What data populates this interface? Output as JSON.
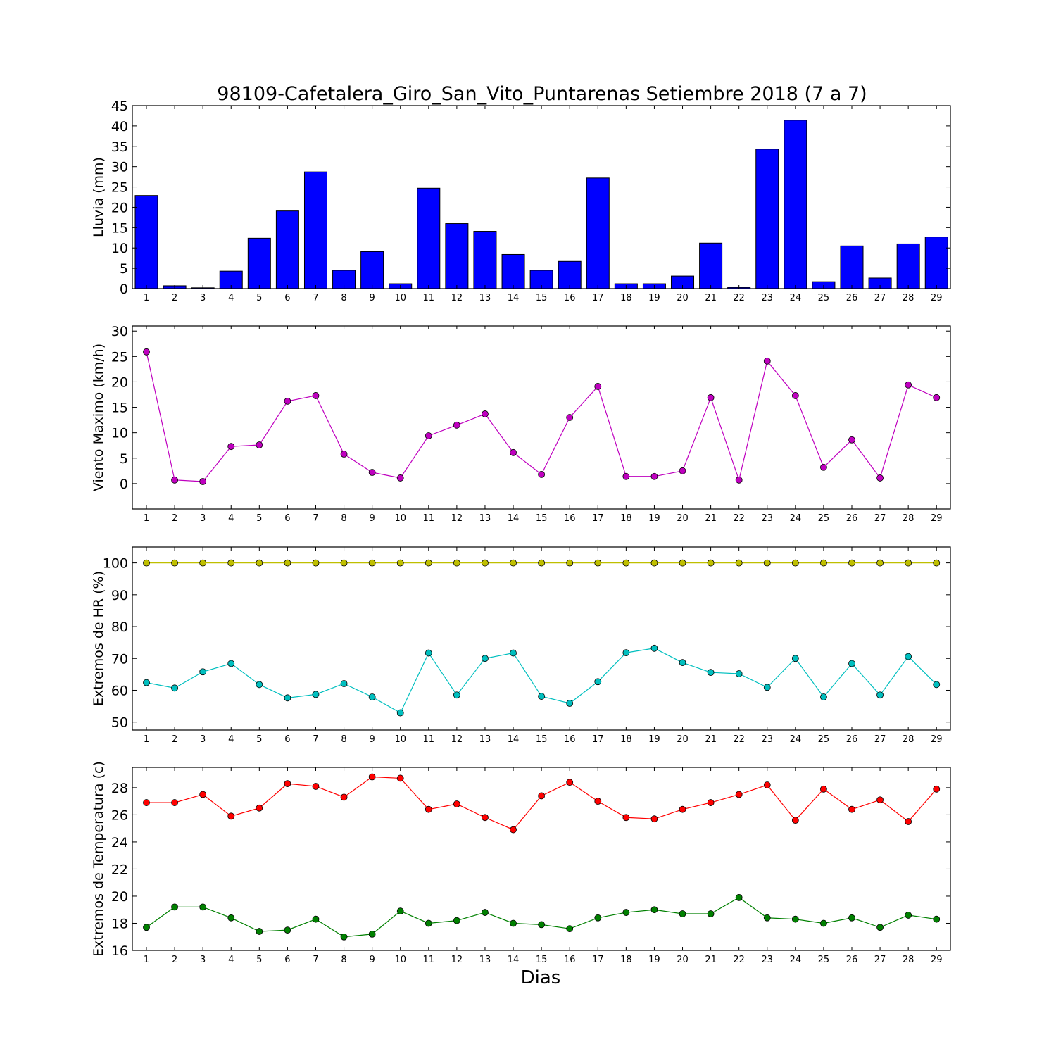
{
  "title": "98109-Cafetalera_Giro_San_Vito_Puntarenas Setiembre 2018  (7 a 7)",
  "xlabel": "Dias",
  "chart_data": [
    {
      "type": "bar",
      "ylabel": "Lluvia (mm)",
      "categories": [
        "1",
        "2",
        "3",
        "4",
        "5",
        "6",
        "7",
        "8",
        "9",
        "10",
        "11",
        "12",
        "13",
        "14",
        "15",
        "16",
        "17",
        "18",
        "19",
        "20",
        "21",
        "22",
        "23",
        "24",
        "25",
        "26",
        "27",
        "28",
        "29"
      ],
      "ylim": [
        0,
        45
      ],
      "yticks": [
        0,
        5,
        10,
        15,
        20,
        25,
        30,
        35,
        40,
        45
      ],
      "grid": false,
      "series": [
        {
          "color": "#0000ff",
          "values": [
            22.9,
            0.7,
            0.2,
            4.3,
            12.4,
            19.1,
            28.7,
            4.5,
            9.1,
            1.2,
            24.7,
            16.0,
            14.1,
            8.4,
            4.5,
            6.7,
            27.2,
            1.2,
            1.2,
            3.1,
            11.2,
            0.3,
            34.3,
            41.4,
            1.7,
            10.5,
            2.6,
            11.0,
            12.7
          ]
        }
      ]
    },
    {
      "type": "line",
      "ylabel": "Viento Maximo (km/h)",
      "categories": [
        "1",
        "2",
        "3",
        "4",
        "5",
        "6",
        "7",
        "8",
        "9",
        "10",
        "11",
        "12",
        "13",
        "14",
        "15",
        "16",
        "17",
        "18",
        "19",
        "20",
        "21",
        "22",
        "23",
        "24",
        "25",
        "26",
        "27",
        "28",
        "29"
      ],
      "ylim": [
        -5,
        31
      ],
      "yticks": [
        0,
        5,
        10,
        15,
        20,
        25,
        30
      ],
      "grid": false,
      "series": [
        {
          "color": "#bf00bf",
          "values": [
            25.9,
            0.7,
            0.4,
            7.3,
            7.6,
            16.2,
            17.3,
            5.8,
            2.2,
            1.1,
            9.4,
            11.5,
            13.7,
            6.1,
            1.8,
            13.0,
            19.1,
            1.4,
            1.4,
            2.5,
            16.9,
            0.7,
            24.1,
            17.3,
            3.2,
            8.6,
            1.1,
            19.4,
            16.9
          ]
        }
      ]
    },
    {
      "type": "line",
      "ylabel": "Extremos de HR (%)",
      "categories": [
        "1",
        "2",
        "3",
        "4",
        "5",
        "6",
        "7",
        "8",
        "9",
        "10",
        "11",
        "12",
        "13",
        "14",
        "15",
        "16",
        "17",
        "18",
        "19",
        "20",
        "21",
        "22",
        "23",
        "24",
        "25",
        "26",
        "27",
        "28",
        "29"
      ],
      "ylim": [
        47.5,
        105
      ],
      "yticks": [
        50,
        60,
        70,
        80,
        90,
        100
      ],
      "grid": false,
      "series": [
        {
          "color": "#bfbf00",
          "values": [
            100,
            100,
            100,
            100,
            100,
            100,
            100,
            100,
            100,
            100,
            100,
            100,
            100,
            100,
            100,
            100,
            100,
            100,
            100,
            100,
            100,
            100,
            100,
            100,
            100,
            100,
            100,
            100,
            100
          ]
        },
        {
          "color": "#00bfbf",
          "values": [
            62.4,
            60.7,
            65.8,
            68.4,
            61.8,
            57.6,
            58.7,
            62.1,
            57.9,
            52.9,
            71.7,
            58.5,
            70.0,
            71.7,
            58.1,
            55.9,
            62.7,
            71.8,
            73.2,
            68.7,
            65.6,
            65.2,
            60.9,
            70.0,
            57.9,
            68.4,
            58.5,
            70.6,
            61.8
          ]
        }
      ]
    },
    {
      "type": "line",
      "ylabel": "Extremos de Temperatura (c)",
      "categories": [
        "1",
        "2",
        "3",
        "4",
        "5",
        "6",
        "7",
        "8",
        "9",
        "10",
        "11",
        "12",
        "13",
        "14",
        "15",
        "16",
        "17",
        "18",
        "19",
        "20",
        "21",
        "22",
        "23",
        "24",
        "25",
        "26",
        "27",
        "28",
        "29"
      ],
      "ylim": [
        16,
        29.5
      ],
      "yticks": [
        16,
        18,
        20,
        22,
        24,
        26,
        28
      ],
      "grid": false,
      "series": [
        {
          "color": "#ff0000",
          "values": [
            26.9,
            26.9,
            27.5,
            25.9,
            26.5,
            28.3,
            28.1,
            27.3,
            28.8,
            28.7,
            26.4,
            26.8,
            25.8,
            24.9,
            27.4,
            28.4,
            27.0,
            25.8,
            25.7,
            26.4,
            26.9,
            27.5,
            28.2,
            25.6,
            27.9,
            26.4,
            27.1,
            25.5,
            27.9
          ]
        },
        {
          "color": "#008000",
          "values": [
            17.7,
            19.2,
            19.2,
            18.4,
            17.4,
            17.5,
            18.3,
            17.0,
            17.2,
            18.9,
            18.0,
            18.2,
            18.8,
            18.0,
            17.9,
            17.6,
            18.4,
            18.8,
            19.0,
            18.7,
            18.7,
            19.9,
            18.4,
            18.3,
            18.0,
            18.4,
            17.7,
            18.6,
            18.3
          ]
        }
      ]
    }
  ]
}
